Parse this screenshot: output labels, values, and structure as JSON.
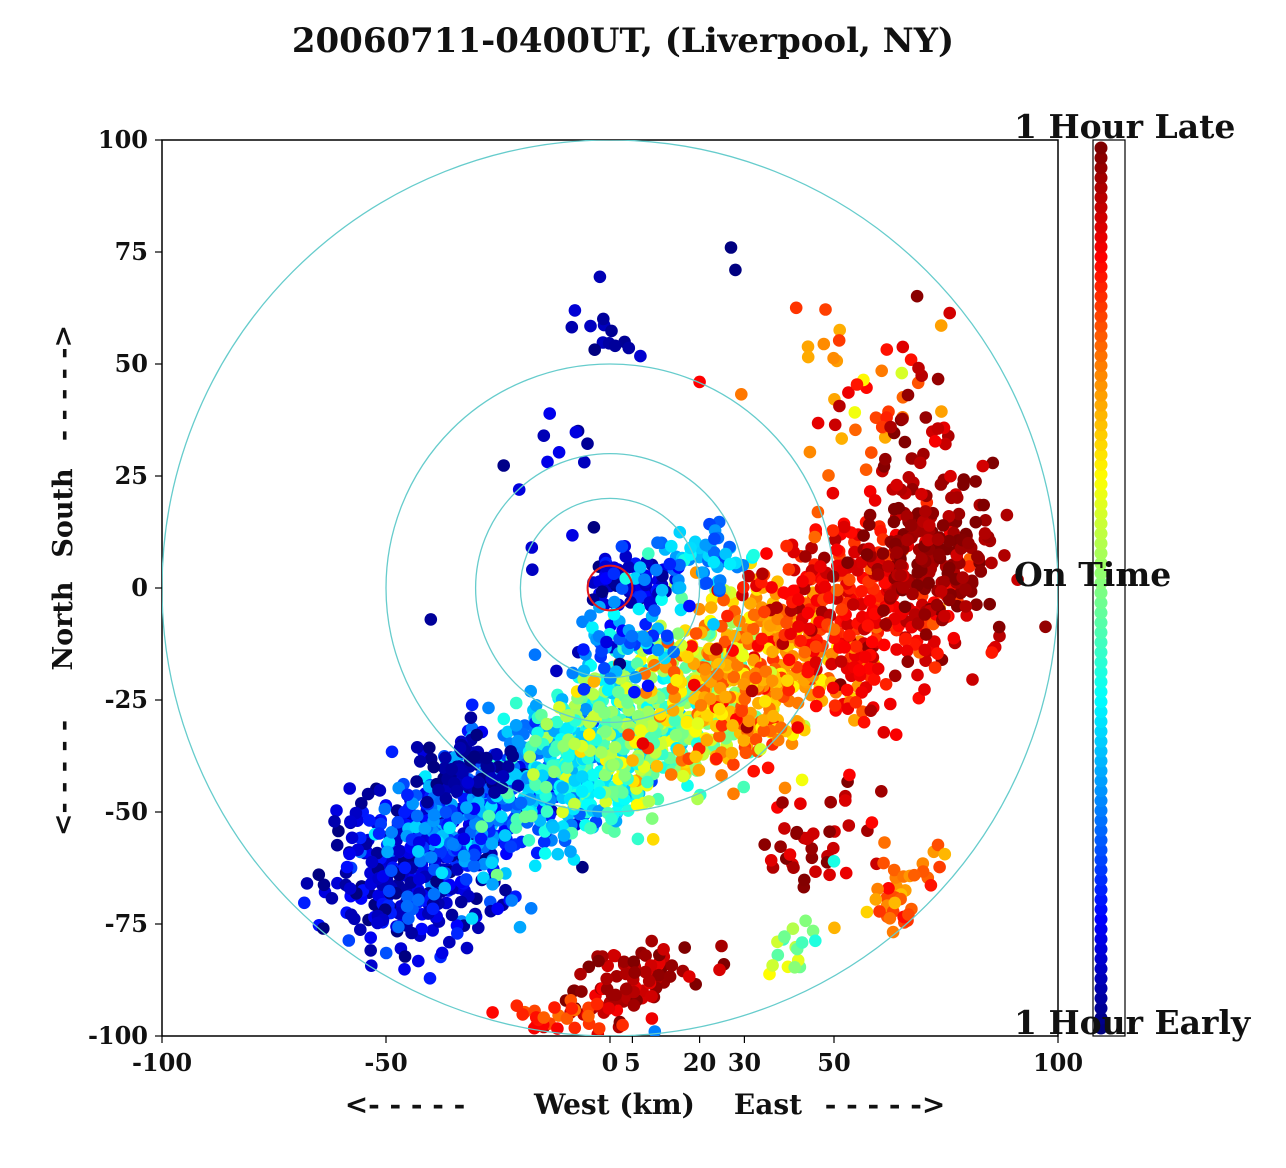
{
  "chart_data": {
    "type": "scatter",
    "title": "20060711-0400UT, (Liverpool, NY)",
    "xlabel": "West (km)    East",
    "x_arrow_left": "<- - - - -",
    "x_arrow_right": "- - - - ->",
    "ylabel_top": "South",
    "ylabel_bottom": "North",
    "y_arrow_down": "<- - - - -",
    "y_arrow_up": "- - - - ->",
    "xlim": [
      -100,
      100
    ],
    "ylim": [
      -100,
      100
    ],
    "xticks": [
      -100,
      -50,
      0,
      5,
      20,
      30,
      50,
      100
    ],
    "yticks": [
      100,
      75,
      50,
      25,
      0,
      -25,
      -50,
      -75,
      -100
    ],
    "range_rings_km": [
      5,
      20,
      30,
      50,
      100
    ],
    "station_marker": {
      "x": 0,
      "y": 0,
      "radius": 5,
      "color": "#e41a1c"
    },
    "ring_color": "#66cccc",
    "colorbar": {
      "colormap": "jet",
      "top_label": "1 Hour Late",
      "middle_label": "On Time",
      "bottom_label": "1 Hour Early"
    },
    "colorscale_note": "t = -1 (1 Hour Early) ... 0 (On Time) ... +1 (1 Hour Late)",
    "clusters": [
      {
        "cx": -42,
        "cy": -62,
        "sx": 11,
        "sy": 9,
        "rot": 35,
        "n": 360,
        "t0": -0.85,
        "tsd": 0.12
      },
      {
        "cx": -25,
        "cy": -48,
        "sx": 13,
        "sy": 8,
        "rot": 35,
        "n": 360,
        "t0": -0.55,
        "tsd": 0.15
      },
      {
        "cx": -5,
        "cy": -38,
        "sx": 13,
        "sy": 8,
        "rot": 35,
        "n": 360,
        "t0": -0.25,
        "tsd": 0.15
      },
      {
        "cx": 12,
        "cy": -28,
        "sx": 13,
        "sy": 8,
        "rot": 35,
        "n": 360,
        "t0": 0.05,
        "tsd": 0.15
      },
      {
        "cx": 32,
        "cy": -20,
        "sx": 12,
        "sy": 9,
        "rot": 35,
        "n": 360,
        "t0": 0.45,
        "tsd": 0.13
      },
      {
        "cx": 55,
        "cy": -5,
        "sx": 11,
        "sy": 11,
        "rot": 35,
        "n": 330,
        "t0": 0.75,
        "tsd": 0.1
      },
      {
        "cx": 72,
        "cy": 8,
        "sx": 7,
        "sy": 8,
        "rot": 0,
        "n": 210,
        "t0": 0.95,
        "tsd": 0.06
      },
      {
        "cx": -33,
        "cy": -40,
        "sx": 5,
        "sy": 4,
        "rot": 0,
        "n": 70,
        "t0": -0.95,
        "tsd": 0.05
      },
      {
        "cx": 5,
        "cy": 2,
        "sx": 5,
        "sy": 3,
        "rot": 0,
        "n": 75,
        "t0": -0.85,
        "tsd": 0.08
      },
      {
        "cx": 22,
        "cy": 8,
        "sx": 6,
        "sy": 4,
        "rot": 0,
        "n": 60,
        "t0": -0.4,
        "tsd": 0.15
      },
      {
        "cx": 3,
        "cy": -12,
        "sx": 7,
        "sy": 5,
        "rot": 30,
        "n": 70,
        "t0": -0.55,
        "tsd": 0.2
      },
      {
        "cx": 5,
        "cy": -88,
        "sx": 7,
        "sy": 4,
        "rot": 20,
        "n": 90,
        "t0": 0.92,
        "tsd": 0.07
      },
      {
        "cx": -10,
        "cy": -96,
        "sx": 6,
        "sy": 2,
        "rot": 0,
        "n": 30,
        "t0": 0.7,
        "tsd": 0.1
      },
      {
        "cx": 45,
        "cy": -56,
        "sx": 7,
        "sy": 6,
        "rot": 40,
        "n": 40,
        "t0": 0.9,
        "tsd": 0.08
      },
      {
        "cx": 65,
        "cy": -68,
        "sx": 8,
        "sy": 4,
        "rot": 40,
        "n": 40,
        "t0": 0.55,
        "tsd": 0.12
      },
      {
        "cx": 42,
        "cy": -82,
        "sx": 4,
        "sy": 4,
        "rot": 0,
        "n": 20,
        "t0": 0.1,
        "tsd": 0.12
      },
      {
        "cx": 55,
        "cy": 42,
        "sx": 9,
        "sy": 9,
        "rot": 0,
        "n": 40,
        "t0": 0.55,
        "tsd": 0.15
      },
      {
        "cx": 70,
        "cy": 35,
        "sx": 6,
        "sy": 12,
        "rot": 0,
        "n": 30,
        "t0": 0.9,
        "tsd": 0.08
      },
      {
        "cx": 0,
        "cy": 56,
        "sx": 5,
        "sy": 4,
        "rot": 0,
        "n": 14,
        "t0": -0.9,
        "tsd": 0.08
      },
      {
        "cx": -12,
        "cy": 28,
        "sx": 8,
        "sy": 12,
        "rot": 0,
        "n": 14,
        "t0": -0.9,
        "tsd": 0.08
      }
    ],
    "named_points": [
      {
        "x": 27,
        "y": 76,
        "t": -1.0
      },
      {
        "x": 28,
        "y": 71,
        "t": -1.0
      },
      {
        "x": -65,
        "y": -64,
        "t": -1.0
      },
      {
        "x": -64,
        "y": -76,
        "t": -1.0
      },
      {
        "x": -54,
        "y": -46,
        "t": -0.95
      },
      {
        "x": -40,
        "y": -7,
        "t": -0.95
      },
      {
        "x": 20,
        "y": 46,
        "t": 0.75
      },
      {
        "x": 50,
        "y": -61,
        "t": -0.2
      },
      {
        "x": 10,
        "y": -99,
        "t": -0.5
      },
      {
        "x": 80,
        "y": 10,
        "t": 0.95
      },
      {
        "x": 82,
        "y": 7,
        "t": 0.95
      }
    ]
  }
}
